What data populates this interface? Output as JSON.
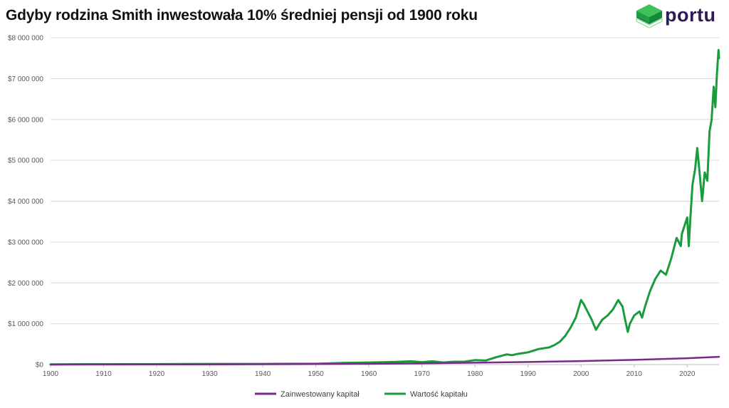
{
  "title": "Gdyby rodzina Smith inwestowała 10% średniej pensji od 1900 roku",
  "logo": {
    "text": "portu",
    "icon": "green-cube-icon",
    "color": "#2e1b56"
  },
  "chart_data": {
    "type": "line",
    "title": "Gdyby rodzina Smith inwestowała 10% średniej pensji od 1900 roku",
    "xlabel": "",
    "ylabel": "",
    "xlim": [
      1900,
      2026
    ],
    "ylim": [
      0,
      8000000
    ],
    "x_ticks": [
      "1900",
      "1910",
      "1920",
      "1930",
      "1940",
      "1950",
      "1960",
      "1970",
      "1980",
      "1990",
      "2000",
      "2010",
      "2020"
    ],
    "y_ticks": [
      "$0",
      "$1 000 000",
      "$2 000 000",
      "$3 000 000",
      "$4 000 000",
      "$5 000 000",
      "$6 000 000",
      "$7 000 000",
      "$8 000 000"
    ],
    "grid": "horizontal",
    "legend_position": "bottom",
    "series": [
      {
        "name": "Zainwestowany kapitał",
        "color": "#7b2a8c",
        "x": [
          1900,
          1910,
          1920,
          1930,
          1940,
          1950,
          1960,
          1970,
          1980,
          1990,
          2000,
          2010,
          2020,
          2026
        ],
        "y": [
          0,
          1000,
          3000,
          6000,
          9000,
          14000,
          20000,
          30000,
          45000,
          62000,
          85000,
          115000,
          155000,
          190000
        ]
      },
      {
        "name": "Wartość kapitału",
        "color": "#1a9b3c",
        "x": [
          1900,
          1910,
          1920,
          1930,
          1940,
          1945,
          1950,
          1955,
          1960,
          1963,
          1965,
          1968,
          1970,
          1972,
          1974,
          1976,
          1978,
          1980,
          1982,
          1984,
          1986,
          1987,
          1988,
          1990,
          1992,
          1994,
          1995,
          1996,
          1997,
          1998,
          1999,
          2000,
          2000.5,
          2001,
          2002,
          2002.8,
          2003.5,
          2004,
          2005,
          2006,
          2007,
          2007.8,
          2008.3,
          2008.8,
          2009.2,
          2010,
          2011,
          2011.5,
          2012,
          2013,
          2014,
          2015,
          2016,
          2017,
          2018,
          2018.8,
          2019,
          2020,
          2020.3,
          2020.6,
          2021,
          2021.5,
          2021.9,
          2022.4,
          2022.8,
          2023.3,
          2023.8,
          2024.2,
          2024.6,
          2025,
          2025.3,
          2025.6,
          2025.9,
          2026
        ],
        "y": [
          5000,
          8000,
          10000,
          15000,
          15000,
          20000,
          20000,
          40000,
          50000,
          60000,
          65000,
          80000,
          60000,
          80000,
          50000,
          70000,
          70000,
          110000,
          100000,
          180000,
          250000,
          230000,
          260000,
          300000,
          380000,
          420000,
          480000,
          560000,
          700000,
          900000,
          1150000,
          1580000,
          1480000,
          1350000,
          1100000,
          850000,
          1000000,
          1100000,
          1200000,
          1350000,
          1580000,
          1420000,
          1100000,
          800000,
          1000000,
          1200000,
          1300000,
          1150000,
          1400000,
          1800000,
          2100000,
          2300000,
          2200000,
          2600000,
          3100000,
          2900000,
          3200000,
          3600000,
          2900000,
          3600000,
          4400000,
          4800000,
          5300000,
          4600000,
          4000000,
          4700000,
          4500000,
          5700000,
          6000000,
          6800000,
          6300000,
          7100000,
          7700000,
          7500000
        ]
      }
    ]
  }
}
